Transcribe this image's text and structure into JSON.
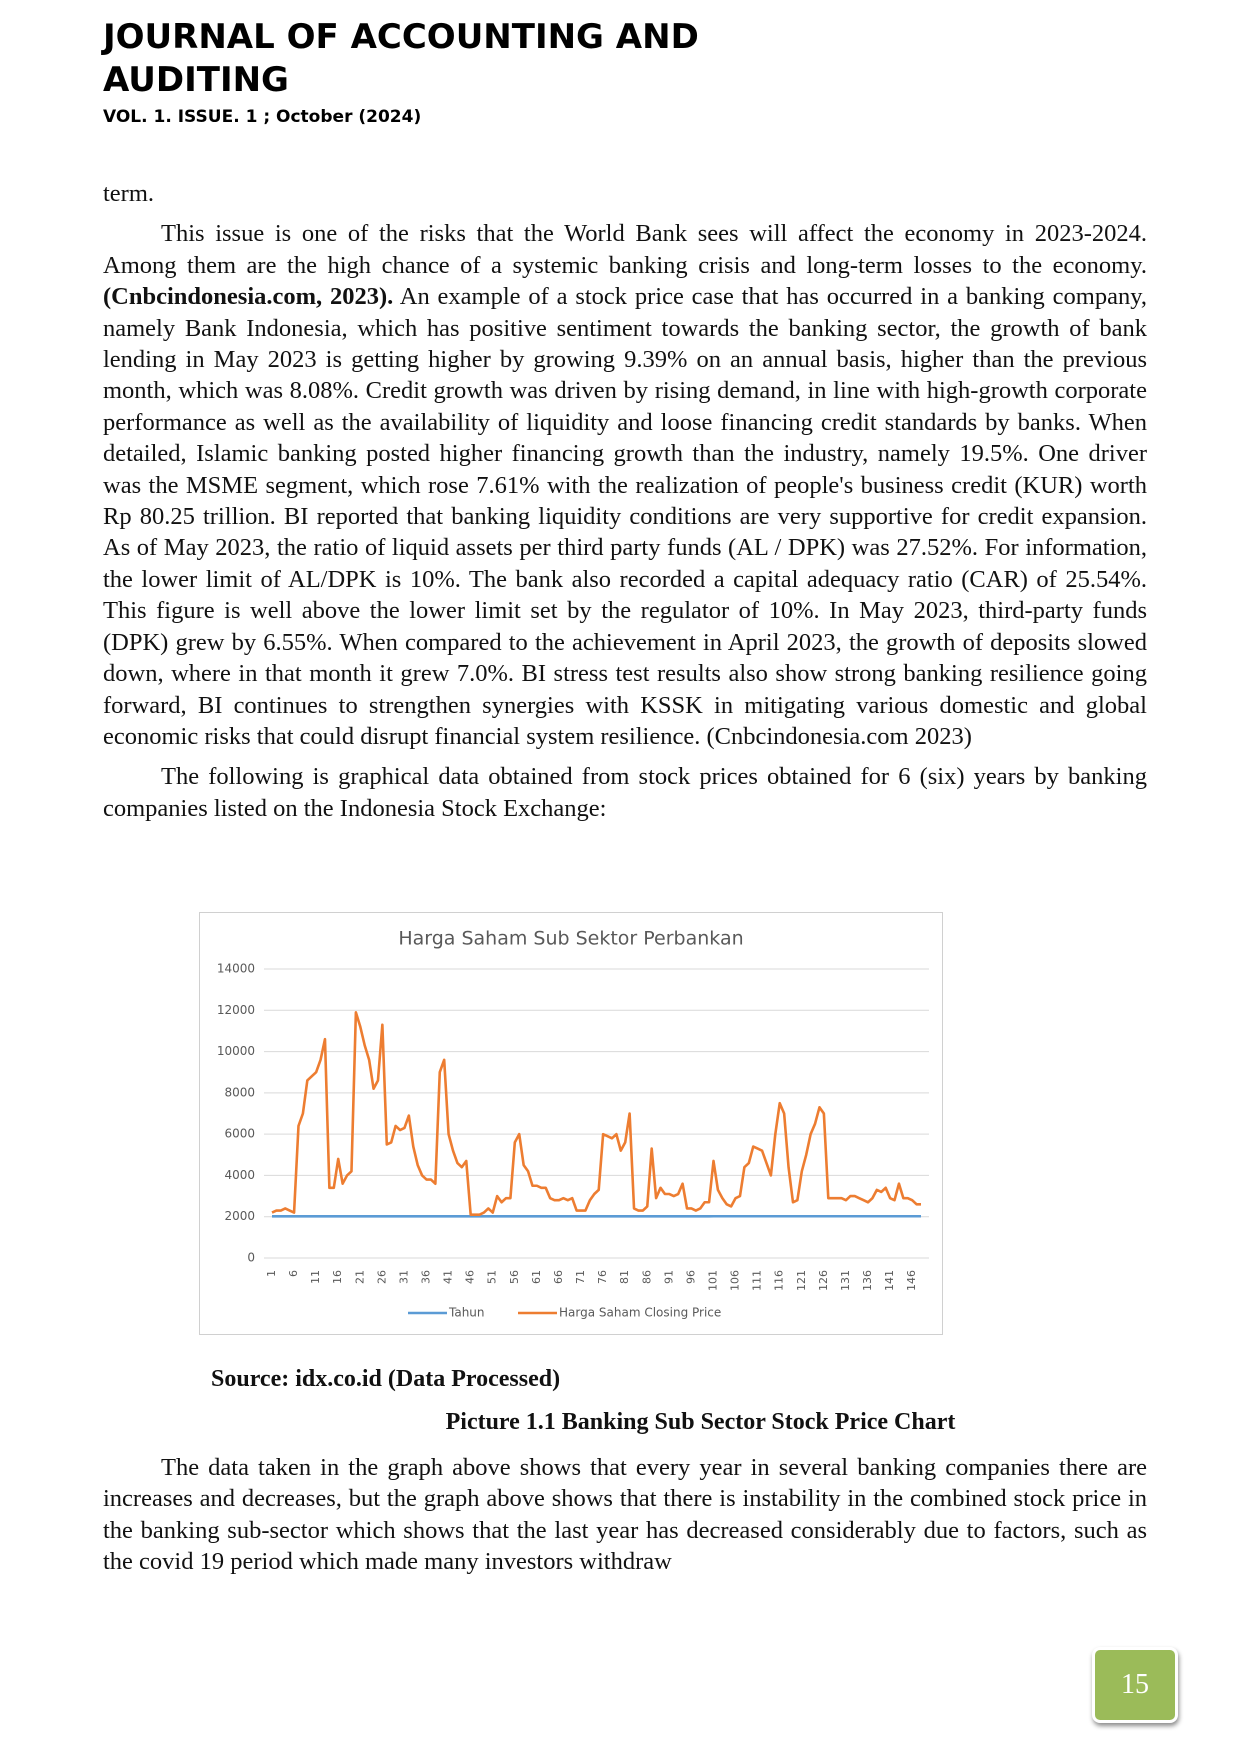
{
  "header": {
    "title": "JOURNAL OF ACCOUNTING AND AUDITING",
    "volume": "VOL. 1. ISSUE. 1 ; October (2024)"
  },
  "body": {
    "paragraphs": [
      "term.",
      [
        "This issue is one of the risks that the World Bank sees will affect the economy in 2023-2024. Among them are the high chance of a systemic banking crisis and long-term losses to the economy. ",
        "(Cnbcindonesia.com, 2023).",
        " An example of a stock price case that has occurred in a banking company, namely Bank Indonesia, which has positive sentiment towards the banking sector, the growth of bank lending in May 2023 is getting higher by growing 9.39% on an annual basis, higher than the previous month, which was 8.08%. Credit growth was driven by rising demand, in line with high-growth corporate performance as well as the availability of liquidity and loose financing credit standards by banks. When detailed, Islamic banking posted higher financing growth than the industry, namely 19.5%. One driver was the MSME segment, which rose 7.61% with the realization of people's business credit (KUR) worth Rp 80.25 trillion. BI reported that banking liquidity conditions are very supportive for credit expansion. As of May 2023, the ratio of liquid assets per third party funds (AL / DPK) was 27.52%. For information, the lower limit of AL/DPK is 10%. The bank also recorded a capital adequacy ratio (CAR) of 25.54%. This figure is well above the lower limit set by the regulator of 10%. In May 2023, third-party funds (DPK) grew by 6.55%. When compared to the achievement in April 2023, the growth of deposits slowed down, where in that month it grew 7.0%. BI stress test results also show strong banking resilience going forward, BI continues to strengthen synergies with KSSK in mitigating various domestic and global economic risks that could disrupt financial system resilience. (Cnbcindonesia.com 2023)"
      ],
      "The following is graphical data obtained from stock prices obtained for 6 (six) years by banking companies listed on the Indonesia Stock Exchange:"
    ],
    "source": "Source: idx.co.id (Data Processed)",
    "caption": "Picture 1.1 Banking Sub Sector Stock Price Chart",
    "closing": "The data taken in the graph above shows that every year in several banking companies there are increases and decreases, but the graph above shows that there is instability in the combined stock price in the banking sub-sector which shows that the last year has decreased considerably due to factors, such as the covid 19 period which made many investors withdraw"
  },
  "chart_data": {
    "type": "line",
    "title": "Harga Saham Sub Sektor Perbankan",
    "categories": [
      1,
      null,
      null,
      null,
      null,
      6,
      null,
      null,
      null,
      null,
      11,
      null,
      null,
      null,
      null,
      16,
      null,
      null,
      null,
      null,
      21,
      null,
      null,
      null,
      null,
      26,
      null,
      null,
      null,
      null,
      31,
      null,
      null,
      null,
      null,
      36,
      null,
      null,
      null,
      null,
      41,
      null,
      null,
      null,
      null,
      46,
      null,
      null,
      null,
      null,
      51,
      null,
      null,
      null,
      null,
      56,
      null,
      null,
      null,
      null,
      61,
      null,
      null,
      null,
      null,
      66,
      null,
      null,
      null,
      null,
      71,
      null,
      null,
      null,
      null,
      76,
      null,
      null,
      null,
      null,
      81,
      null,
      null,
      null,
      null,
      86,
      null,
      null,
      null,
      null,
      91,
      null,
      null,
      null,
      null,
      96,
      null,
      null,
      null,
      null,
      101,
      null,
      null,
      null,
      null,
      106,
      null,
      null,
      null,
      null,
      111,
      null,
      null,
      null,
      null,
      116,
      null,
      null,
      null,
      null,
      121,
      null,
      null,
      null,
      null,
      126,
      null,
      null,
      null,
      null,
      131,
      null,
      null,
      null,
      null,
      136,
      null,
      null,
      null,
      null,
      141,
      null,
      null,
      null,
      null,
      146,
      null,
      null
    ],
    "series": [
      {
        "name": "Tahun",
        "color": "#5b9bd5",
        "values": [
          2018,
          2018,
          2018,
          2018,
          2018,
          2018,
          2018,
          2018,
          2018,
          2018,
          2018,
          2018,
          2018,
          2018,
          2018,
          2018,
          2018,
          2018,
          2018,
          2018,
          2018,
          2018,
          2018,
          2018,
          2018,
          2019,
          2019,
          2019,
          2019,
          2019,
          2019,
          2019,
          2019,
          2019,
          2019,
          2019,
          2019,
          2019,
          2019,
          2019,
          2019,
          2019,
          2019,
          2019,
          2019,
          2019,
          2019,
          2019,
          2019,
          2019,
          2020,
          2020,
          2020,
          2020,
          2020,
          2020,
          2020,
          2020,
          2020,
          2020,
          2020,
          2020,
          2020,
          2020,
          2020,
          2020,
          2020,
          2020,
          2020,
          2020,
          2020,
          2020,
          2020,
          2020,
          2020,
          2021,
          2021,
          2021,
          2021,
          2021,
          2021,
          2021,
          2021,
          2021,
          2021,
          2021,
          2021,
          2021,
          2021,
          2021,
          2021,
          2021,
          2021,
          2021,
          2021,
          2021,
          2021,
          2021,
          2021,
          2021,
          2022,
          2022,
          2022,
          2022,
          2022,
          2022,
          2022,
          2022,
          2022,
          2022,
          2022,
          2022,
          2022,
          2022,
          2022,
          2022,
          2022,
          2022,
          2022,
          2022,
          2022,
          2022,
          2022,
          2022,
          2022,
          2023,
          2023,
          2023,
          2023,
          2023,
          2023,
          2023,
          2023,
          2023,
          2023,
          2023,
          2023,
          2023,
          2023,
          2023,
          2023,
          2023,
          2023,
          2023,
          2023,
          2023,
          2023,
          2023
        ]
      },
      {
        "name": "Harga Saham Closing Price",
        "color": "#ed7d31",
        "values": [
          2200,
          2300,
          2300,
          2400,
          2300,
          2200,
          6400,
          7000,
          8600,
          8800,
          9000,
          9600,
          10600,
          3400,
          3400,
          4800,
          3600,
          4000,
          4200,
          11900,
          11200,
          10300,
          9600,
          8200,
          8600,
          11300,
          5500,
          5600,
          6400,
          6200,
          6300,
          6900,
          5400,
          4500,
          4000,
          3800,
          3800,
          3600,
          9000,
          9600,
          6000,
          5200,
          4600,
          4400,
          4700,
          2100,
          2100,
          2100,
          2200,
          2400,
          2200,
          3000,
          2700,
          2900,
          2900,
          5600,
          6000,
          4500,
          4200,
          3500,
          3500,
          3400,
          3400,
          2900,
          2800,
          2800,
          2900,
          2800,
          2900,
          2300,
          2300,
          2300,
          2800,
          3100,
          3300,
          6000,
          5900,
          5800,
          6000,
          5200,
          5600,
          7000,
          2400,
          2300,
          2300,
          2500,
          5300,
          2900,
          3400,
          3100,
          3100,
          3000,
          3100,
          3600,
          2400,
          2400,
          2300,
          2400,
          2700,
          2700,
          4700,
          3300,
          2900,
          2600,
          2500,
          2900,
          3000,
          4400,
          4600,
          5400,
          5300,
          5200,
          4600,
          4000,
          6000,
          7500,
          7000,
          4400,
          2700,
          2800,
          4200,
          5000,
          6000,
          6500,
          7300,
          7000,
          2900,
          2900,
          2900,
          2900,
          2800,
          3000,
          3000,
          2900,
          2800,
          2700,
          2900,
          3300,
          3200,
          3400,
          2900,
          2800,
          3600,
          2900,
          2900,
          2800,
          2600,
          2600
        ]
      }
    ],
    "ylim": [
      0,
      14000
    ],
    "yticks": [
      0,
      2000,
      4000,
      6000,
      8000,
      10000,
      12000,
      14000
    ],
    "grid": true,
    "legend": "bottom"
  }
}
